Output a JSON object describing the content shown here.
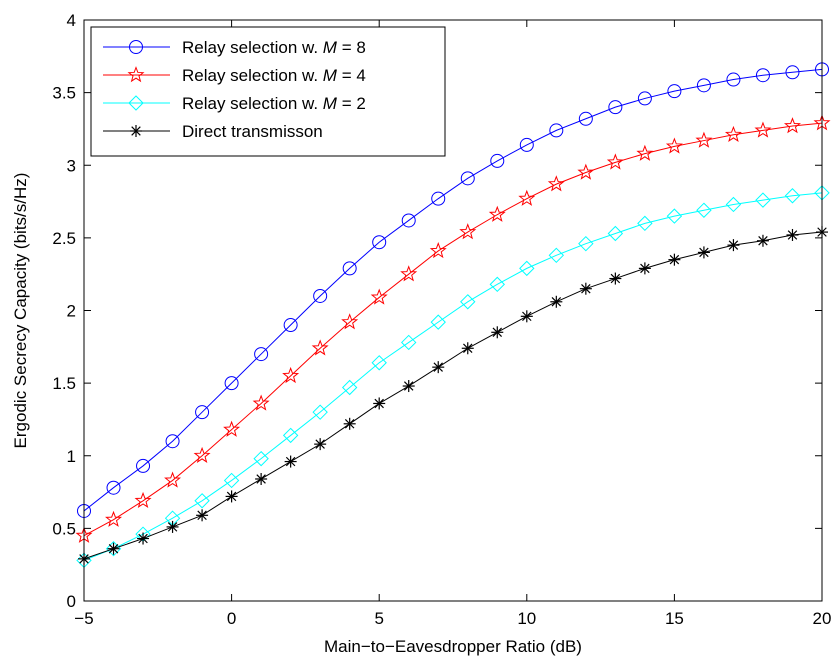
{
  "chart_data": {
    "type": "line",
    "xlabel": "Main−to−Eavesdropper Ratio (dB)",
    "ylabel": "Ergodic Secrecy Capacity (bits/s/Hz)",
    "xlim": [
      -5,
      20
    ],
    "ylim": [
      0,
      4
    ],
    "xticks": [
      -5,
      0,
      5,
      10,
      15,
      20
    ],
    "xtick_labels": [
      "−5",
      "0",
      "5",
      "10",
      "15",
      "20"
    ],
    "yticks": [
      0,
      0.5,
      1,
      1.5,
      2,
      2.5,
      3,
      3.5,
      4
    ],
    "ytick_labels": [
      "0",
      "0.5",
      "1",
      "1.5",
      "2",
      "2.5",
      "3",
      "3.5",
      "4"
    ],
    "grid": false,
    "legend_position": "top-left",
    "x": [
      -5,
      -4,
      -3,
      -2,
      -1,
      0,
      1,
      2,
      3,
      4,
      5,
      6,
      7,
      8,
      9,
      10,
      11,
      12,
      13,
      14,
      15,
      16,
      17,
      18,
      19,
      20
    ],
    "series": [
      {
        "name": "Relay selection w. M = 8",
        "legend_text": "Relay selection w. ",
        "legend_var": "M",
        "legend_val": " = 8",
        "color": "#0000ff",
        "marker": "circle",
        "values": [
          0.62,
          0.78,
          0.93,
          1.1,
          1.3,
          1.5,
          1.7,
          1.9,
          2.1,
          2.29,
          2.47,
          2.62,
          2.77,
          2.91,
          3.03,
          3.14,
          3.24,
          3.32,
          3.4,
          3.46,
          3.51,
          3.55,
          3.59,
          3.62,
          3.64,
          3.66
        ]
      },
      {
        "name": "Relay selection  w. M = 4",
        "legend_text": "Relay selection  w. ",
        "legend_var": "M",
        "legend_val": " = 4",
        "color": "#ff0000",
        "marker": "star",
        "values": [
          0.45,
          0.56,
          0.69,
          0.83,
          1.0,
          1.18,
          1.36,
          1.55,
          1.74,
          1.92,
          2.09,
          2.25,
          2.41,
          2.54,
          2.66,
          2.77,
          2.87,
          2.95,
          3.02,
          3.08,
          3.13,
          3.17,
          3.21,
          3.24,
          3.27,
          3.29
        ]
      },
      {
        "name": "Relay selection  w. M = 2",
        "legend_text": "Relay selection  w. ",
        "legend_var": "M",
        "legend_val": " = 2",
        "color": "#00ffff",
        "marker": "diamond",
        "values": [
          0.28,
          0.36,
          0.46,
          0.57,
          0.69,
          0.83,
          0.98,
          1.14,
          1.3,
          1.47,
          1.64,
          1.78,
          1.92,
          2.06,
          2.18,
          2.29,
          2.38,
          2.46,
          2.53,
          2.6,
          2.65,
          2.69,
          2.73,
          2.76,
          2.79,
          2.81
        ]
      },
      {
        "name": "Direct transmisson",
        "legend_text": "Direct transmisson",
        "legend_var": "",
        "legend_val": "",
        "color": "#000000",
        "marker": "asterisk",
        "values": [
          0.29,
          0.36,
          0.43,
          0.51,
          0.59,
          0.72,
          0.84,
          0.96,
          1.08,
          1.22,
          1.36,
          1.48,
          1.61,
          1.74,
          1.85,
          1.96,
          2.06,
          2.15,
          2.22,
          2.29,
          2.35,
          2.4,
          2.45,
          2.48,
          2.52,
          2.54
        ]
      }
    ]
  }
}
